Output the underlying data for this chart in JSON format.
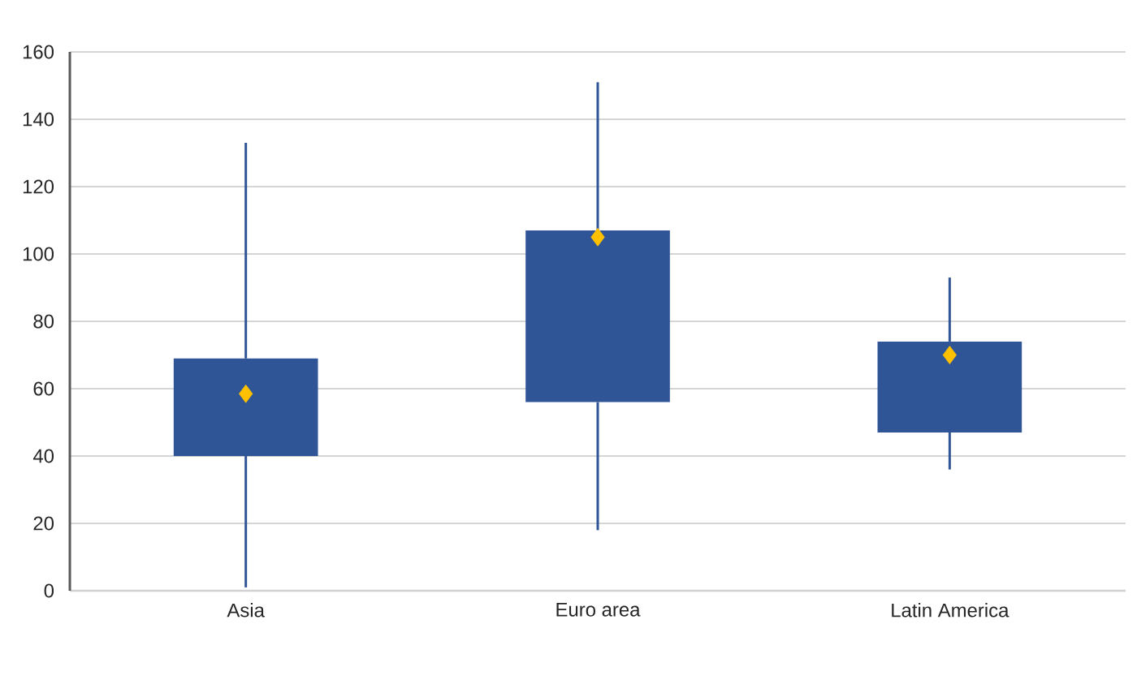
{
  "chart_data": {
    "type": "box",
    "categories": [
      "Asia",
      "Euro area",
      "Latin America"
    ],
    "boxes": [
      {
        "low": 1,
        "q1": 40,
        "median": 58.5,
        "q3": 69,
        "high": 133
      },
      {
        "low": 18,
        "q1": 56,
        "median": 105,
        "q3": 107,
        "high": 151
      },
      {
        "low": 36,
        "q1": 47,
        "median": 70,
        "q3": 74,
        "high": 93
      }
    ],
    "color": "#2f5597",
    "marker": "diamond",
    "ylim": [
      0,
      160
    ],
    "yticks": [
      0,
      20,
      40,
      60,
      80,
      100,
      120,
      140,
      160
    ],
    "grid": "y"
  }
}
